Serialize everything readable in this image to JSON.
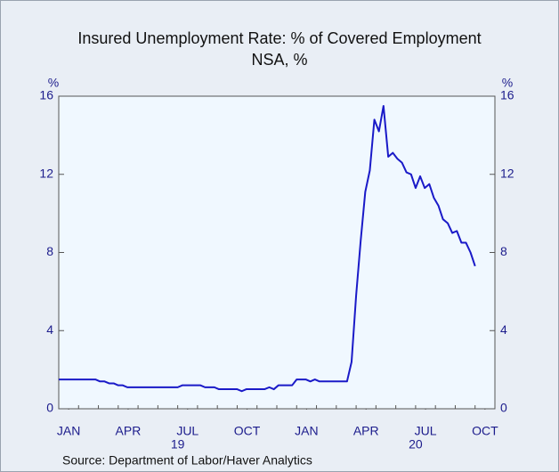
{
  "chart_data": {
    "type": "line",
    "title": "Insured Unemployment Rate: % of Covered Employment",
    "subtitle": "NSA, %",
    "source": "Source:  Department of Labor/Haver Analytics",
    "y_unit": "%",
    "y2_unit": "%",
    "x": [
      0,
      0.23,
      0.46,
      0.69,
      0.92,
      1.15,
      1.38,
      1.62,
      1.85,
      2.08,
      2.31,
      2.54,
      2.77,
      3,
      3.23,
      3.46,
      3.69,
      3.92,
      4.15,
      4.38,
      4.62,
      4.85,
      5.08,
      5.31,
      5.54,
      5.77,
      6,
      6.23,
      6.46,
      6.69,
      6.92,
      7.15,
      7.38,
      7.62,
      7.85,
      8.08,
      8.31,
      8.54,
      8.77,
      9,
      9.23,
      9.46,
      9.69,
      9.92,
      10.15,
      10.38,
      10.62,
      10.85,
      11.08,
      11.31,
      11.54,
      11.77,
      12,
      12.23,
      12.46,
      12.69,
      12.92,
      13.15,
      13.38,
      13.62,
      13.85,
      14.08,
      14.31,
      14.54,
      14.77,
      15,
      15.23,
      15.46,
      15.69,
      15.92,
      16.15,
      16.38,
      16.62,
      16.85,
      17.08,
      17.31,
      17.54,
      17.77,
      18,
      18.23,
      18.46,
      18.69,
      18.92,
      19.15,
      19.38,
      19.62,
      19.85,
      20.08,
      20.31,
      20.54,
      20.77,
      21
    ],
    "series": [
      {
        "name": "Insured Unemployment Rate",
        "color": "#1a1ac8",
        "values": [
          1.5,
          1.5,
          1.5,
          1.5,
          1.5,
          1.5,
          1.5,
          1.5,
          1.5,
          1.4,
          1.4,
          1.3,
          1.3,
          1.2,
          1.2,
          1.1,
          1.1,
          1.1,
          1.1,
          1.1,
          1.1,
          1.1,
          1.1,
          1.1,
          1.1,
          1.1,
          1.1,
          1.2,
          1.2,
          1.2,
          1.2,
          1.2,
          1.1,
          1.1,
          1.1,
          1.0,
          1.0,
          1.0,
          1.0,
          1.0,
          0.9,
          1.0,
          1.0,
          1.0,
          1.0,
          1.0,
          1.1,
          1.0,
          1.2,
          1.2,
          1.2,
          1.2,
          1.5,
          1.5,
          1.5,
          1.4,
          1.5,
          1.4,
          1.4,
          1.4,
          1.4,
          1.4,
          1.4,
          1.4,
          2.4,
          5.8,
          8.6,
          11.1,
          12.2,
          14.8,
          14.2,
          15.5,
          12.9,
          13.1,
          12.8,
          12.6,
          12.1,
          12.0,
          11.3,
          11.9,
          11.3,
          11.5,
          10.8,
          10.4,
          9.7,
          9.5,
          9.0,
          9.1,
          8.5,
          8.5,
          8.0,
          7.3
        ]
      }
    ],
    "xlim": [
      0,
      22
    ],
    "xticks": [
      {
        "value": 0.5,
        "label": "JAN"
      },
      {
        "value": 3.5,
        "label": "APR"
      },
      {
        "value": 6.5,
        "label": "JUL"
      },
      {
        "value": 9.5,
        "label": "OCT"
      },
      {
        "value": 12.5,
        "label": "JAN"
      },
      {
        "value": 15.5,
        "label": "APR"
      },
      {
        "value": 18.5,
        "label": "JUL"
      },
      {
        "value": 21.5,
        "label": "OCT"
      }
    ],
    "year_labels": [
      {
        "value": 6,
        "label": "19"
      },
      {
        "value": 18,
        "label": "20"
      }
    ],
    "ylim": [
      0,
      16
    ],
    "yticks": [
      0,
      4,
      8,
      12,
      16
    ],
    "y2lim": [
      0,
      16
    ],
    "y2ticks": [
      0,
      4,
      8,
      12,
      16
    ]
  }
}
